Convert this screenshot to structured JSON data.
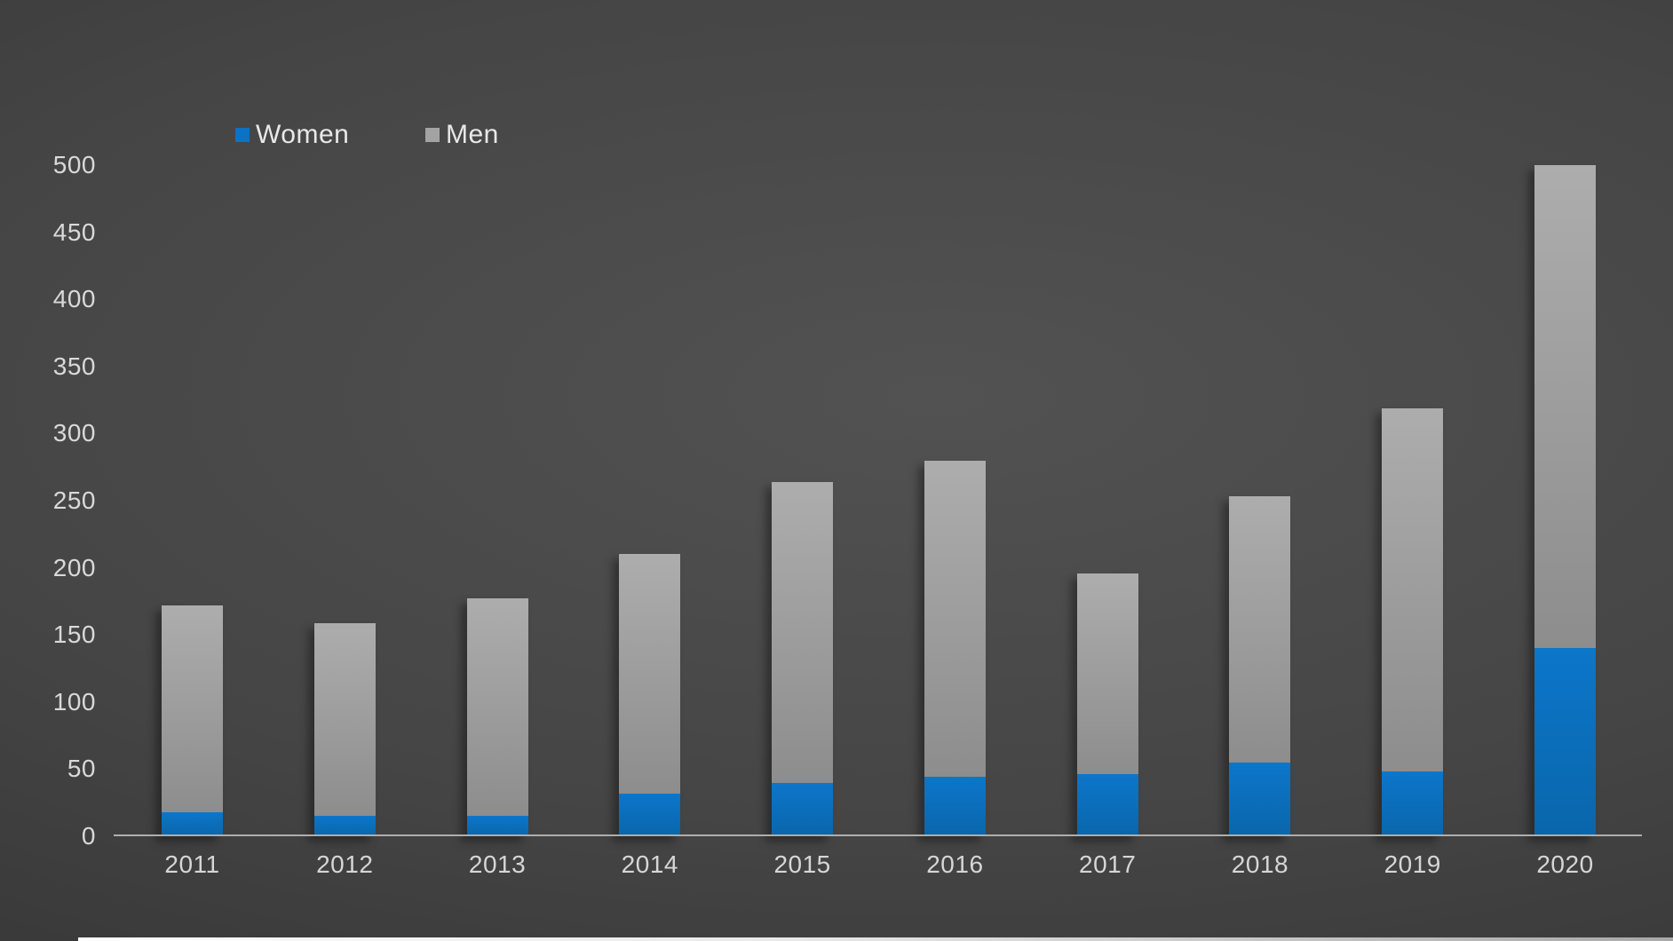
{
  "chart_data": {
    "type": "bar",
    "stacked": true,
    "title": "",
    "categories": [
      "2011",
      "2012",
      "2013",
      "2014",
      "2015",
      "2016",
      "2017",
      "2018",
      "2019",
      "2020"
    ],
    "series": [
      {
        "name": "Women",
        "color": "#0b72c4",
        "values": [
          18,
          15,
          15,
          32,
          40,
          44,
          46,
          55,
          48,
          140
        ]
      },
      {
        "name": "Men",
        "color": "#a3a3a3",
        "values": [
          154,
          144,
          162,
          178,
          224,
          236,
          150,
          198,
          271,
          360
        ]
      }
    ],
    "totals": [
      172,
      159,
      177,
      210,
      264,
      280,
      196,
      253,
      319,
      500
    ],
    "xlabel": "",
    "ylabel": "",
    "ylim": [
      0,
      500
    ],
    "yticks": [
      0,
      50,
      100,
      150,
      200,
      250,
      300,
      350,
      400,
      450,
      500
    ],
    "grid": false,
    "legend_position": "top-left"
  },
  "colors": {
    "women": "#0b72c4",
    "men": "#a3a3a3",
    "background_center": "#525252",
    "background_edge": "#2e2e2e",
    "axis_line": "#aeaeae",
    "label_text": "#d9d9d9"
  }
}
